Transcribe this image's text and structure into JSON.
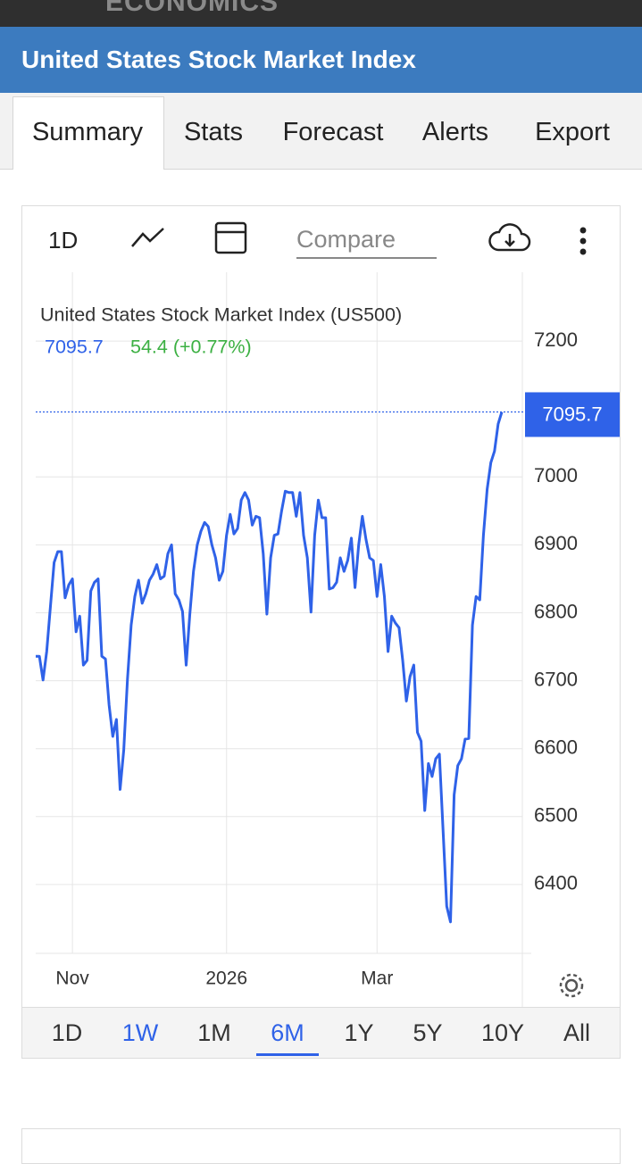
{
  "app": {
    "brand": "ECONOMICS",
    "page_title": "United States Stock Market Index"
  },
  "tabs": [
    "Summary",
    "Stats",
    "Forecast",
    "Alerts",
    "Export"
  ],
  "toolbar": {
    "interval": "1D",
    "compare_placeholder": "Compare"
  },
  "chart_data": {
    "type": "line",
    "series": [
      {
        "name": "United States Stock Market Index (US500)",
        "color": "#2f62e8",
        "values": [
          6736,
          6736,
          6701,
          6743,
          6808,
          6874,
          6890,
          6890,
          6822,
          6841,
          6850,
          6772,
          6795,
          6723,
          6730,
          6832,
          6845,
          6850,
          6736,
          6732,
          6664,
          6618,
          6643,
          6540,
          6598,
          6703,
          6782,
          6824,
          6848,
          6814,
          6828,
          6848,
          6857,
          6871,
          6850,
          6854,
          6887,
          6900,
          6828,
          6819,
          6802,
          6723,
          6798,
          6861,
          6900,
          6920,
          6933,
          6927,
          6900,
          6881,
          6848,
          6861,
          6914,
          6945,
          6916,
          6924,
          6966,
          6977,
          6966,
          6929,
          6942,
          6940,
          6887,
          6798,
          6881,
          6914,
          6916,
          6950,
          6979,
          6977,
          6977,
          6942,
          6977,
          6914,
          6881,
          6801,
          6914,
          6966,
          6940,
          6940,
          6835,
          6837,
          6845,
          6881,
          6861,
          6877,
          6910,
          6837,
          6900,
          6942,
          6908,
          6881,
          6877,
          6824,
          6871,
          6824,
          6743,
          6795,
          6785,
          6778,
          6730,
          6670,
          6706,
          6723,
          6624,
          6611,
          6509,
          6578,
          6559,
          6585,
          6592,
          6480,
          6368,
          6345,
          6532,
          6575,
          6585,
          6614,
          6615,
          6782,
          6824,
          6819,
          6914,
          6982,
          7021,
          7038,
          7078,
          7095.7
        ]
      }
    ],
    "categories": [
      null,
      null,
      null,
      null,
      null,
      null,
      null,
      null,
      null,
      null,
      "Nov",
      null,
      null,
      null,
      null,
      null,
      null,
      null,
      null,
      null,
      null,
      null,
      null,
      null,
      null,
      null,
      null,
      null,
      null,
      null,
      null,
      null,
      null,
      null,
      null,
      null,
      null,
      null,
      null,
      null,
      null,
      null,
      null,
      null,
      null,
      null,
      null,
      null,
      null,
      null,
      null,
      null,
      "2026",
      null,
      null,
      null,
      null,
      null,
      null,
      null,
      null,
      null,
      null,
      null,
      null,
      null,
      null,
      null,
      null,
      null,
      null,
      null,
      null,
      null,
      null,
      null,
      null,
      null,
      null,
      null,
      null,
      null,
      null,
      null,
      null,
      null,
      null,
      null,
      null,
      null,
      null,
      null,
      null,
      "Mar",
      null,
      null,
      null,
      null,
      null,
      null,
      null,
      null,
      null,
      null,
      null,
      null,
      null,
      null,
      null,
      null,
      null,
      null,
      null,
      null,
      null,
      null,
      null,
      null,
      null,
      null,
      null,
      null,
      null,
      null,
      null,
      null,
      null,
      null
    ],
    "change_label": "54.4 (+0.77%)",
    "change_color": "#3cb043",
    "ylim": [
      6300,
      7300
    ],
    "yticks": [
      6400,
      6500,
      6600,
      6700,
      6800,
      6900,
      7000,
      7200
    ],
    "grid": true
  },
  "ranges": [
    "1D",
    "1W",
    "1M",
    "6M",
    "1Y",
    "5Y",
    "10Y",
    "All"
  ],
  "selected_range_index": 3
}
